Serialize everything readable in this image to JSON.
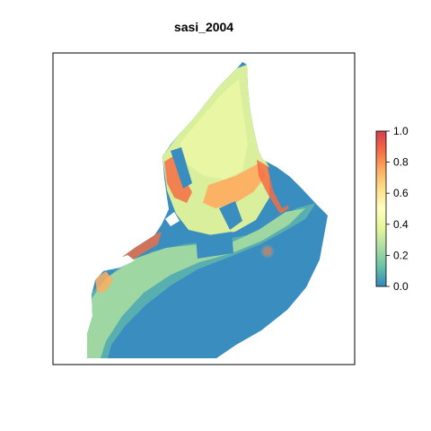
{
  "title": "sasi_2004",
  "colors": {
    "low": "#3a8ebf",
    "mid": "#ffffbf",
    "high": "#d53e4f",
    "land": "#ffffff",
    "frame": "#000000"
  },
  "legend": {
    "placement": "right",
    "min": 0.0,
    "max": 1.0,
    "ticks": [
      "0.0",
      "0.2",
      "0.4",
      "0.6",
      "0.8",
      "1.0"
    ],
    "palette": [
      "#3288bd",
      "#66c2a5",
      "#abdda4",
      "#e6f598",
      "#ffffbf",
      "#fee08b",
      "#fdae61",
      "#f46d43",
      "#d53e4f"
    ]
  }
}
